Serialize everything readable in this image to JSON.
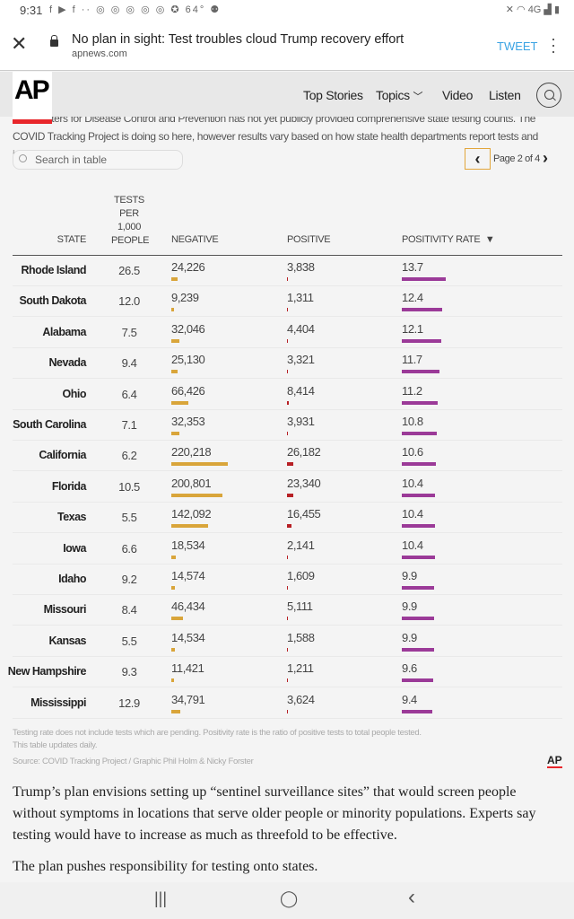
{
  "status": {
    "time": "9:31",
    "icons": "f ▶ f ·· ◎ ◎ ◎ ◎ ◎ ✪ 64° ⚉",
    "right": "✕ ◠ 4G ▟ ▮"
  },
  "browser": {
    "title": "No plan in sight: Test troubles cloud Trump recovery effort",
    "url": "apnews.com",
    "tweet": "TWEET"
  },
  "nav": {
    "logo": "AP",
    "items": [
      "Top Stories",
      "Topics",
      "Video",
      "Listen"
    ]
  },
  "intro": "The Centers for Disease Control and Prevention has not yet publicly provided comprehensive state testing counts. The COVID Tracking Project is doing so here, however results vary based on how state health departments report tests and infections.",
  "table": {
    "search_placeholder": "Search in table",
    "page_label": "Page 2 of 4",
    "headers": {
      "state": "STATE",
      "tests": "TESTS PER 1,000 PEOPLE",
      "negative": "NEGATIVE",
      "positive": "POSITIVE",
      "rate": "POSITIVITY RATE",
      "sort": "▼"
    },
    "colors": {
      "negative": "#d9a53a",
      "positive": "#b72025",
      "rate": "#9b3a98"
    },
    "rows": [
      {
        "state": "Rhode Island",
        "tests": "26.5",
        "negative": "24,226",
        "positive": "3,838",
        "rate": "13.7"
      },
      {
        "state": "South Dakota",
        "tests": "12.0",
        "negative": "9,239",
        "positive": "1,311",
        "rate": "12.4"
      },
      {
        "state": "Alabama",
        "tests": "7.5",
        "negative": "32,046",
        "positive": "4,404",
        "rate": "12.1"
      },
      {
        "state": "Nevada",
        "tests": "9.4",
        "negative": "25,130",
        "positive": "3,321",
        "rate": "11.7"
      },
      {
        "state": "Ohio",
        "tests": "6.4",
        "negative": "66,426",
        "positive": "8,414",
        "rate": "11.2"
      },
      {
        "state": "South Carolina",
        "tests": "7.1",
        "negative": "32,353",
        "positive": "3,931",
        "rate": "10.8"
      },
      {
        "state": "California",
        "tests": "6.2",
        "negative": "220,218",
        "positive": "26,182",
        "rate": "10.6"
      },
      {
        "state": "Florida",
        "tests": "10.5",
        "negative": "200,801",
        "positive": "23,340",
        "rate": "10.4"
      },
      {
        "state": "Texas",
        "tests": "5.5",
        "negative": "142,092",
        "positive": "16,455",
        "rate": "10.4"
      },
      {
        "state": "Iowa",
        "tests": "6.6",
        "negative": "18,534",
        "positive": "2,141",
        "rate": "10.4"
      },
      {
        "state": "Idaho",
        "tests": "9.2",
        "negative": "14,574",
        "positive": "1,609",
        "rate": "9.9"
      },
      {
        "state": "Missouri",
        "tests": "8.4",
        "negative": "46,434",
        "positive": "5,111",
        "rate": "9.9"
      },
      {
        "state": "Kansas",
        "tests": "5.5",
        "negative": "14,534",
        "positive": "1,588",
        "rate": "9.9"
      },
      {
        "state": "New Hampshire",
        "tests": "9.3",
        "negative": "11,421",
        "positive": "1,211",
        "rate": "9.6"
      },
      {
        "state": "Mississippi",
        "tests": "12.9",
        "negative": "34,791",
        "positive": "3,624",
        "rate": "9.4"
      }
    ],
    "notes": [
      "Testing rate does not include tests which are pending. Positivity rate is the ratio of positive tests to total people tested.",
      "This table updates daily.",
      "Source: COVID Tracking Project / Graphic Phil Holm & Nicky Forster"
    ],
    "footer_logo": "AP"
  },
  "article": [
    "Trump’s plan envisions setting up “sentinel surveillance sites” that would screen people without symptoms in locations that serve older people or minority populations. Experts say testing would have to increase as much as threefold to be effective.",
    "The plan pushes responsibility for testing onto states."
  ],
  "system_nav": {
    "recents": "|||",
    "home": "◯",
    "back": "‹"
  }
}
